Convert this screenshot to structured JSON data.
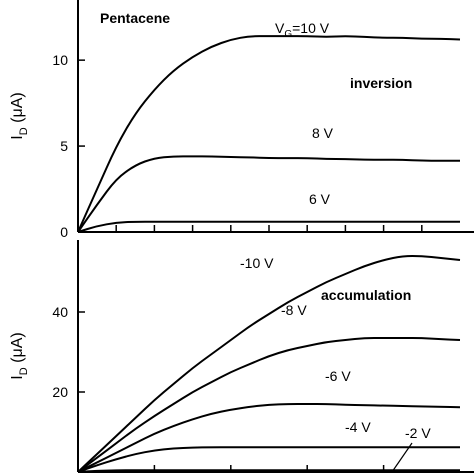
{
  "chart_data": [
    {
      "type": "line",
      "panel": "top",
      "title": "Pentacene",
      "region_label": "inversion",
      "ylabel": "I_D (μA)",
      "ylabel_main": "I",
      "ylabel_sub": "D",
      "ylabel_unit": " (μA)",
      "ylim": [
        0,
        13.5
      ],
      "xlim": [
        0,
        20
      ],
      "y_ticks": [
        0,
        5,
        10
      ],
      "y_tick_labels": [
        "0",
        "5",
        "10"
      ],
      "x_ticks": [
        2,
        4,
        6,
        8,
        10,
        12,
        14,
        16,
        18
      ],
      "series": [
        {
          "name": "V_G=10 V",
          "label": {
            "pre": "V",
            "sub": "G",
            "post": "=10 V"
          },
          "x": [
            0,
            1,
            2,
            3,
            4,
            5,
            6,
            7,
            8,
            9,
            10,
            11,
            12,
            13,
            14,
            15,
            16,
            17,
            18,
            19,
            20
          ],
          "y": [
            0,
            2.5,
            5.0,
            6.9,
            8.3,
            9.4,
            10.2,
            10.8,
            11.2,
            11.4,
            11.4,
            11.4,
            11.4,
            11.35,
            11.4,
            11.35,
            11.3,
            11.3,
            11.25,
            11.25,
            11.2
          ]
        },
        {
          "name": "8 V",
          "label": "8 V",
          "x": [
            0,
            1,
            2,
            3,
            4,
            5,
            6,
            7,
            8,
            9,
            10,
            11,
            12,
            13,
            14,
            15,
            16,
            17,
            18,
            19,
            20
          ],
          "y": [
            0,
            1.6,
            3.1,
            3.9,
            4.3,
            4.4,
            4.4,
            4.4,
            4.35,
            4.35,
            4.3,
            4.3,
            4.3,
            4.25,
            4.25,
            4.2,
            4.2,
            4.2,
            4.15,
            4.15,
            4.15
          ]
        },
        {
          "name": "6 V",
          "label": "6 V",
          "x": [
            0,
            1,
            2,
            3,
            4,
            5,
            6,
            7,
            8,
            9,
            10,
            11,
            12,
            13,
            14,
            15,
            16,
            17,
            18,
            19,
            20
          ],
          "y": [
            0,
            0.35,
            0.55,
            0.6,
            0.6,
            0.6,
            0.6,
            0.6,
            0.6,
            0.6,
            0.6,
            0.6,
            0.6,
            0.6,
            0.6,
            0.6,
            0.6,
            0.6,
            0.6,
            0.6,
            0.6
          ]
        }
      ]
    },
    {
      "type": "line",
      "panel": "bottom",
      "region_label": "accumulation",
      "ylabel": "I_D (μA)",
      "ylabel_main": "I",
      "ylabel_sub": "D",
      "ylabel_unit": " (μA)",
      "ylim": [
        0,
        58
      ],
      "xlim": [
        0,
        20
      ],
      "y_ticks": [
        20,
        40
      ],
      "y_tick_labels": [
        "20",
        "40"
      ],
      "x_ticks": [
        4,
        8,
        12,
        16
      ],
      "series": [
        {
          "name": "-10 V",
          "label": "-10 V",
          "x": [
            0,
            1,
            2,
            3,
            4,
            5,
            6,
            7,
            8,
            9,
            10,
            11,
            12,
            13,
            14,
            15,
            16,
            17,
            18,
            19,
            20
          ],
          "y": [
            0,
            4.5,
            9,
            13.5,
            18,
            22,
            26,
            29.5,
            33,
            36.5,
            39.5,
            42.5,
            45,
            47.5,
            49.5,
            51.5,
            53,
            54,
            54,
            53.5,
            53
          ]
        },
        {
          "name": "-8 V",
          "label": "-8 V",
          "x": [
            0,
            1,
            2,
            3,
            4,
            5,
            6,
            7,
            8,
            9,
            10,
            11,
            12,
            13,
            14,
            15,
            16,
            17,
            18,
            19,
            20
          ],
          "y": [
            0,
            3.6,
            7.2,
            10.8,
            14,
            17,
            20,
            22.5,
            25,
            27,
            29,
            30.5,
            31.5,
            32.5,
            33,
            33.5,
            33.5,
            33.5,
            33.5,
            33.2,
            33
          ]
        },
        {
          "name": "-6 V",
          "label": "-6 V",
          "x": [
            0,
            1,
            2,
            3,
            4,
            5,
            6,
            7,
            8,
            9,
            10,
            11,
            12,
            13,
            14,
            15,
            16,
            17,
            18,
            19,
            20
          ],
          "y": [
            0,
            2.4,
            4.8,
            7.2,
            9.6,
            11.5,
            13.2,
            14.6,
            15.6,
            16.3,
            16.8,
            17,
            17,
            17,
            16.8,
            16.7,
            16.6,
            16.5,
            16.4,
            16.3,
            16.2
          ]
        },
        {
          "name": "-4 V",
          "label": "-4 V",
          "x": [
            0,
            1,
            2,
            3,
            4,
            5,
            6,
            7,
            8,
            9,
            10,
            11,
            12,
            13,
            14,
            15,
            16,
            17,
            18,
            19,
            20
          ],
          "y": [
            0,
            1.7,
            3.2,
            4.5,
            5.4,
            5.9,
            6.1,
            6.2,
            6.2,
            6.2,
            6.2,
            6.2,
            6.2,
            6.2,
            6.2,
            6.2,
            6.2,
            6.2,
            6.2,
            6.2,
            6.2
          ]
        },
        {
          "name": "-2 V",
          "label": "-2 V",
          "x": [
            0,
            1,
            2,
            3,
            4,
            5,
            6,
            7,
            8,
            9,
            10,
            11,
            12,
            13,
            14,
            15,
            16,
            17,
            18,
            19,
            20
          ],
          "y": [
            0,
            0.3,
            0.4,
            0.45,
            0.45,
            0.45,
            0.45,
            0.45,
            0.45,
            0.45,
            0.45,
            0.45,
            0.45,
            0.45,
            0.45,
            0.45,
            0.45,
            0.45,
            0.45,
            0.45,
            0.45
          ]
        }
      ]
    }
  ]
}
